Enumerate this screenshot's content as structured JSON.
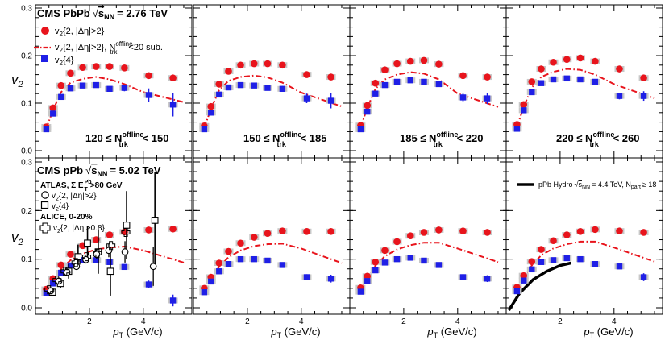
{
  "figure": {
    "ylabel": "v",
    "ylabel_sub": "2",
    "xlabel": "p",
    "xlabel_sub": "T",
    "xlabel_unit": "(GeV/c)",
    "x_ticks": [
      2,
      4
    ],
    "y_ticks": [
      "0.0",
      "0.1",
      "0.2",
      "0.3"
    ]
  },
  "top_legend": {
    "title_prefix": "CMS PbPb",
    "title_sqrt": "s",
    "title_sub": "NN",
    "title_value": "= 2.76 TeV",
    "entry1": "v",
    "entry1_sub": "2",
    "entry1_rest": "{2, |Δη|>2}",
    "entry2": "v",
    "entry2_sub": "2",
    "entry2_rest": "{2, |Δη|>2}, N",
    "entry2_sup": "offline",
    "entry2_sub2": "trk",
    "entry2_tail": "<20 sub.",
    "entry3": "v",
    "entry3_sub": "2",
    "entry3_rest": "{4}"
  },
  "bottom_legend": {
    "title_prefix": "CMS pPb",
    "title_sqrt": "s",
    "title_sub": "NN",
    "title_value": "= 5.02 TeV",
    "atlas_label": "ATLAS, Σ E",
    "atlas_sup": "Pb",
    "atlas_sub": "T",
    "atlas_tail": ">80 GeV",
    "atlas_entry1": "v",
    "atlas_entry1_sub": "2",
    "atlas_entry1_rest": "{2, |Δη|>2}",
    "atlas_entry2": "v",
    "atlas_entry2_sub": "2",
    "atlas_entry2_rest": "{4}",
    "alice_label": "ALICE, 0-20%",
    "alice_entry": "v",
    "alice_entry_sub": "2",
    "alice_entry_rest": "{2, |Δη|>0.8}"
  },
  "hydro_legend": {
    "label": "pPb Hydro",
    "sqrt": "s",
    "sub": "NN",
    "value": "= 4.4 TeV, N",
    "sub2": "part",
    "tail": "≥ 18"
  },
  "bins": [
    {
      "lo": "120",
      "hi": "150",
      "sup": "offline",
      "sub": "trk"
    },
    {
      "lo": "150",
      "hi": "185",
      "sup": "offline",
      "sub": "trk"
    },
    {
      "lo": "185",
      "hi": "220",
      "sup": "offline",
      "sub": "trk"
    },
    {
      "lo": "220",
      "hi": "260",
      "sup": "offline",
      "sub": "trk"
    }
  ],
  "colors": {
    "v22": "#e8141c",
    "v24": "#1f1fe6",
    "sub": "#e8141c",
    "syst": "#c8c8c8",
    "hydro": "#000000"
  },
  "chart_data": {
    "type": "scatter",
    "x_range": [
      0,
      5.8
    ],
    "y_range": [
      -0.01,
      0.31
    ],
    "panels": [
      {
        "row": "PbPb",
        "bin": "120-150",
        "v22": {
          "x": [
            0.4,
            0.65,
            0.95,
            1.3,
            1.75,
            2.25,
            2.75,
            3.3,
            4.2,
            5.1
          ],
          "y": [
            0.05,
            0.09,
            0.137,
            0.163,
            0.175,
            0.177,
            0.177,
            0.174,
            0.158,
            0.153
          ]
        },
        "v24": {
          "x": [
            0.4,
            0.65,
            0.95,
            1.3,
            1.75,
            2.25,
            2.75,
            3.3,
            4.2,
            5.1
          ],
          "y": [
            0.045,
            0.078,
            0.113,
            0.131,
            0.137,
            0.138,
            0.13,
            0.132,
            0.117,
            0.097
          ],
          "err": [
            0.002,
            0.003,
            0.003,
            0.003,
            0.003,
            0.004,
            0.005,
            0.007,
            0.014,
            0.025
          ]
        },
        "v22sub": {
          "x": [
            0.4,
            0.65,
            0.95,
            1.3,
            1.75,
            2.25,
            2.75,
            3.3,
            4.0,
            5.5
          ],
          "y": [
            0.047,
            0.085,
            0.123,
            0.143,
            0.151,
            0.155,
            0.15,
            0.14,
            0.123,
            0.102
          ]
        }
      },
      {
        "row": "PbPb",
        "bin": "150-185",
        "v22": {
          "x": [
            0.4,
            0.65,
            0.95,
            1.3,
            1.75,
            2.25,
            2.75,
            3.3,
            4.2,
            5.1
          ],
          "y": [
            0.052,
            0.093,
            0.14,
            0.167,
            0.18,
            0.183,
            0.183,
            0.18,
            0.16,
            0.155
          ]
        },
        "v24": {
          "x": [
            0.4,
            0.65,
            0.95,
            1.3,
            1.75,
            2.25,
            2.75,
            3.3,
            4.2,
            5.1
          ],
          "y": [
            0.045,
            0.08,
            0.118,
            0.133,
            0.138,
            0.137,
            0.132,
            0.13,
            0.11,
            0.105
          ],
          "err": [
            0.002,
            0.003,
            0.003,
            0.003,
            0.003,
            0.004,
            0.004,
            0.006,
            0.01,
            0.016
          ]
        },
        "v22sub": {
          "x": [
            0.4,
            0.65,
            0.95,
            1.3,
            1.75,
            2.25,
            2.75,
            3.3,
            4.0,
            5.5
          ],
          "y": [
            0.048,
            0.088,
            0.127,
            0.147,
            0.155,
            0.158,
            0.154,
            0.143,
            0.122,
            0.093
          ]
        }
      },
      {
        "row": "PbPb",
        "bin": "185-220",
        "v22": {
          "x": [
            0.4,
            0.65,
            0.95,
            1.3,
            1.75,
            2.25,
            2.75,
            3.3,
            4.2,
            5.1
          ],
          "y": [
            0.053,
            0.095,
            0.142,
            0.17,
            0.183,
            0.188,
            0.19,
            0.182,
            0.158,
            0.155
          ]
        },
        "v24": {
          "x": [
            0.4,
            0.65,
            0.95,
            1.3,
            1.75,
            2.25,
            2.75,
            3.3,
            4.2,
            5.1
          ],
          "y": [
            0.045,
            0.082,
            0.12,
            0.138,
            0.145,
            0.148,
            0.145,
            0.14,
            0.112,
            0.11
          ],
          "err": [
            0.002,
            0.003,
            0.003,
            0.003,
            0.003,
            0.004,
            0.004,
            0.006,
            0.008,
            0.012
          ]
        },
        "v22sub": {
          "x": [
            0.4,
            0.65,
            0.95,
            1.3,
            1.75,
            2.25,
            2.75,
            3.3,
            4.0,
            5.5
          ],
          "y": [
            0.049,
            0.09,
            0.13,
            0.15,
            0.16,
            0.165,
            0.162,
            0.15,
            0.12,
            0.092
          ]
        }
      },
      {
        "row": "PbPb",
        "bin": "220-260",
        "v22": {
          "x": [
            0.4,
            0.65,
            0.95,
            1.3,
            1.75,
            2.25,
            2.75,
            3.3,
            4.2,
            5.1
          ],
          "y": [
            0.055,
            0.097,
            0.145,
            0.172,
            0.186,
            0.192,
            0.195,
            0.188,
            0.172,
            0.153
          ]
        },
        "v24": {
          "x": [
            0.4,
            0.65,
            0.95,
            1.3,
            1.75,
            2.25,
            2.75,
            3.3,
            4.2,
            5.1
          ],
          "y": [
            0.046,
            0.085,
            0.123,
            0.142,
            0.15,
            0.152,
            0.15,
            0.145,
            0.115,
            0.115
          ],
          "err": [
            0.002,
            0.003,
            0.003,
            0.003,
            0.003,
            0.004,
            0.004,
            0.005,
            0.007,
            0.01
          ]
        },
        "v22sub": {
          "x": [
            0.4,
            0.65,
            0.95,
            1.3,
            1.75,
            2.25,
            2.75,
            3.3,
            4.0,
            5.5
          ],
          "y": [
            0.05,
            0.092,
            0.133,
            0.155,
            0.166,
            0.172,
            0.17,
            0.16,
            0.14,
            0.11
          ]
        }
      },
      {
        "row": "pPb",
        "bin": "120-150",
        "v22": {
          "x": [
            0.4,
            0.65,
            0.95,
            1.3,
            1.75,
            2.25,
            2.75,
            3.3,
            4.2,
            5.1
          ],
          "y": [
            0.038,
            0.06,
            0.088,
            0.11,
            0.128,
            0.14,
            0.15,
            0.156,
            0.16,
            0.162
          ]
        },
        "v24": {
          "x": [
            0.4,
            0.65,
            0.95,
            1.3,
            1.75,
            2.25,
            2.75,
            3.3,
            4.2,
            5.1
          ],
          "y": [
            0.03,
            0.05,
            0.072,
            0.087,
            0.098,
            0.098,
            0.094,
            0.084,
            0.048,
            0.015
          ],
          "err": [
            0.002,
            0.003,
            0.003,
            0.003,
            0.003,
            0.004,
            0.004,
            0.005,
            0.008,
            0.012
          ]
        },
        "v22sub": {
          "x": [
            0.4,
            0.65,
            0.95,
            1.3,
            1.75,
            2.25,
            2.75,
            3.3,
            4.0,
            5.5
          ],
          "y": [
            0.034,
            0.057,
            0.08,
            0.098,
            0.111,
            0.12,
            0.124,
            0.126,
            0.118,
            0.093
          ]
        },
        "atlas_v22": {
          "x": [
            0.6,
            0.9,
            1.2,
            1.55,
            1.9,
            2.3,
            2.75,
            3.35,
            4.4
          ],
          "y": [
            0.035,
            0.055,
            0.073,
            0.085,
            0.099,
            0.11,
            0.118,
            0.115,
            0.085
          ],
          "err": [
            0.004,
            0.005,
            0.006,
            0.007,
            0.008,
            0.01,
            0.014,
            0.022,
            0.04
          ]
        },
        "atlas_v24": {
          "x": [
            0.6,
            0.9,
            1.2,
            1.55,
            1.9,
            2.3,
            2.75,
            3.35,
            4.4
          ],
          "y": [
            0.032,
            0.05,
            0.075,
            0.105,
            0.133,
            0.115,
            0.075,
            0.17,
            0.18
          ],
          "err": [
            0.008,
            0.01,
            0.015,
            0.025,
            0.035,
            0.045,
            0.05,
            0.07,
            0.1
          ]
        },
        "alice": {
          "x": [
            0.5,
            0.8,
            1.1,
            1.5,
            1.9,
            2.3,
            2.8,
            3.35
          ],
          "y": [
            0.037,
            0.057,
            0.075,
            0.093,
            0.105,
            0.112,
            0.128,
            0.155
          ]
        }
      },
      {
        "row": "pPb",
        "bin": "150-185",
        "v22": {
          "x": [
            0.4,
            0.65,
            0.95,
            1.3,
            1.75,
            2.25,
            2.75,
            3.3,
            4.2,
            5.1
          ],
          "y": [
            0.04,
            0.063,
            0.092,
            0.116,
            0.133,
            0.145,
            0.153,
            0.158,
            0.157,
            0.157
          ]
        },
        "v24": {
          "x": [
            0.4,
            0.65,
            0.95,
            1.3,
            1.75,
            2.25,
            2.75,
            3.3,
            4.2,
            5.1
          ],
          "y": [
            0.032,
            0.054,
            0.075,
            0.09,
            0.1,
            0.1,
            0.097,
            0.088,
            0.063,
            0.06
          ],
          "err": [
            0.002,
            0.003,
            0.003,
            0.003,
            0.003,
            0.004,
            0.004,
            0.005,
            0.006,
            0.008
          ]
        },
        "v22sub": {
          "x": [
            0.4,
            0.65,
            0.95,
            1.3,
            1.75,
            2.25,
            2.75,
            3.3,
            4.0,
            5.5
          ],
          "y": [
            0.036,
            0.06,
            0.084,
            0.104,
            0.118,
            0.127,
            0.131,
            0.132,
            0.122,
            0.092
          ]
        }
      },
      {
        "row": "pPb",
        "bin": "185-220",
        "v22": {
          "x": [
            0.4,
            0.65,
            0.95,
            1.3,
            1.75,
            2.25,
            2.75,
            3.3,
            4.2,
            5.1
          ],
          "y": [
            0.041,
            0.065,
            0.094,
            0.118,
            0.136,
            0.148,
            0.155,
            0.16,
            0.158,
            0.155
          ]
        },
        "v24": {
          "x": [
            0.4,
            0.65,
            0.95,
            1.3,
            1.75,
            2.25,
            2.75,
            3.3,
            4.2,
            5.1
          ],
          "y": [
            0.033,
            0.055,
            0.077,
            0.093,
            0.1,
            0.103,
            0.097,
            0.088,
            0.063,
            0.06
          ],
          "err": [
            0.002,
            0.003,
            0.003,
            0.003,
            0.003,
            0.003,
            0.004,
            0.004,
            0.006,
            0.007
          ]
        },
        "v22sub": {
          "x": [
            0.4,
            0.65,
            0.95,
            1.3,
            1.75,
            2.25,
            2.75,
            3.3,
            4.0,
            5.5
          ],
          "y": [
            0.037,
            0.061,
            0.086,
            0.106,
            0.12,
            0.129,
            0.134,
            0.134,
            0.122,
            0.094
          ]
        }
      },
      {
        "row": "pPb",
        "bin": "220-260",
        "v22": {
          "x": [
            0.4,
            0.65,
            0.95,
            1.3,
            1.75,
            2.25,
            2.75,
            3.3,
            4.2,
            5.1
          ],
          "y": [
            0.042,
            0.066,
            0.095,
            0.12,
            0.138,
            0.15,
            0.157,
            0.161,
            0.158,
            0.155
          ]
        },
        "v24": {
          "x": [
            0.4,
            0.65,
            0.95,
            1.3,
            1.75,
            2.25,
            2.75,
            3.3,
            4.2,
            5.1
          ],
          "y": [
            0.034,
            0.056,
            0.079,
            0.094,
            0.098,
            0.102,
            0.1,
            0.09,
            0.085,
            0.063
          ],
          "err": [
            0.002,
            0.003,
            0.003,
            0.003,
            0.003,
            0.003,
            0.004,
            0.004,
            0.005,
            0.008
          ]
        },
        "v22sub": {
          "x": [
            0.4,
            0.65,
            0.95,
            1.3,
            1.75,
            2.25,
            2.75,
            3.3,
            4.0,
            5.5
          ],
          "y": [
            0.038,
            0.062,
            0.087,
            0.108,
            0.122,
            0.131,
            0.136,
            0.136,
            0.124,
            0.095
          ]
        },
        "hydro": {
          "x": [
            0.1,
            0.5,
            1.0,
            1.5,
            2.0,
            2.4
          ],
          "y": [
            -0.005,
            0.03,
            0.058,
            0.075,
            0.087,
            0.092
          ]
        }
      }
    ]
  }
}
